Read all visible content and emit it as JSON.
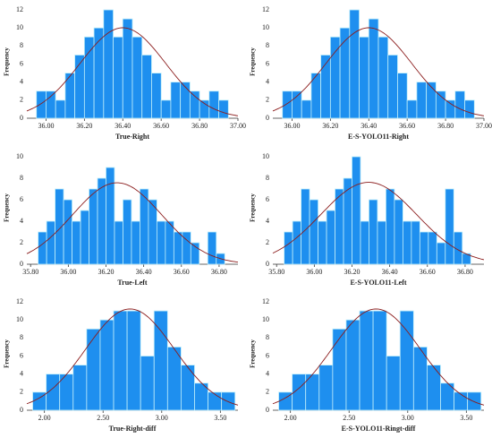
{
  "chart_data": [
    {
      "type": "histogram",
      "xlabel": "True-Right",
      "ylabel": "Frequency",
      "color": "#1e8fef",
      "bins": [
        35.95,
        36.0,
        36.05,
        36.1,
        36.15,
        36.2,
        36.25,
        36.3,
        36.35,
        36.4,
        36.45,
        36.5,
        36.55,
        36.6,
        36.65,
        36.7,
        36.75,
        36.8,
        36.85,
        36.9,
        36.95
      ],
      "values": [
        3,
        3,
        2,
        5,
        7,
        9,
        10,
        12,
        9,
        11,
        9,
        7,
        5,
        2,
        4,
        4,
        3,
        2,
        3,
        2
      ],
      "xlim": [
        35.9,
        37.0
      ],
      "ylim": [
        0,
        12.5
      ],
      "xticks": [
        {
          "value": 36.0,
          "label": "36.00"
        },
        {
          "value": 36.2,
          "label": "36.20"
        },
        {
          "value": 36.4,
          "label": "36.40"
        },
        {
          "value": 36.6,
          "label": "36.60"
        },
        {
          "value": 36.8,
          "label": "36.80"
        },
        {
          "value": 37.0,
          "label": "37.00"
        }
      ],
      "yticks": [
        0,
        2,
        4,
        6,
        8,
        10,
        12
      ]
    },
    {
      "type": "histogram",
      "xlabel": "E-S-YOLO11-Right",
      "ylabel": "Frequency",
      "color": "#1e8fef",
      "bins": [
        35.95,
        36.0,
        36.05,
        36.1,
        36.15,
        36.2,
        36.25,
        36.3,
        36.35,
        36.4,
        36.45,
        36.5,
        36.55,
        36.6,
        36.65,
        36.7,
        36.75,
        36.8,
        36.85,
        36.9,
        36.95
      ],
      "values": [
        3,
        3,
        2,
        5,
        7,
        9,
        10,
        12,
        9,
        11,
        9,
        7,
        5,
        2,
        4,
        4,
        3,
        2,
        3,
        2
      ],
      "xlim": [
        35.9,
        37.0
      ],
      "ylim": [
        0,
        12.5
      ],
      "xticks": [
        {
          "value": 36.0,
          "label": "36.00"
        },
        {
          "value": 36.2,
          "label": "36.20"
        },
        {
          "value": 36.4,
          "label": "36.40"
        },
        {
          "value": 36.6,
          "label": "36.60"
        },
        {
          "value": 36.8,
          "label": "36.80"
        },
        {
          "value": 37.0,
          "label": "37.00"
        }
      ],
      "yticks": [
        0,
        2,
        4,
        6,
        8,
        10,
        12
      ]
    },
    {
      "type": "histogram",
      "xlabel": "True-Left",
      "ylabel": "Frequency",
      "color": "#1e8fef",
      "bins": [
        35.84,
        35.885,
        35.93,
        35.975,
        36.02,
        36.065,
        36.11,
        36.155,
        36.2,
        36.245,
        36.29,
        36.335,
        36.38,
        36.425,
        36.47,
        36.515,
        36.56,
        36.605,
        36.65,
        36.695,
        36.74,
        36.785,
        36.83
      ],
      "values": [
        3,
        4,
        7,
        6,
        4,
        5,
        7,
        8,
        9,
        4,
        6,
        4,
        7,
        6,
        4,
        4,
        3,
        3,
        2,
        0,
        3,
        1
      ],
      "xlim": [
        35.78,
        36.9
      ],
      "ylim": [
        0,
        10.5
      ],
      "xticks": [
        {
          "value": 35.8,
          "label": "35.80"
        },
        {
          "value": 36.0,
          "label": "36.00"
        },
        {
          "value": 36.2,
          "label": "36.20"
        },
        {
          "value": 36.4,
          "label": "36.40"
        },
        {
          "value": 36.6,
          "label": "36.60"
        },
        {
          "value": 36.8,
          "label": "36.80"
        }
      ],
      "yticks": [
        0,
        2,
        4,
        6,
        8,
        10
      ]
    },
    {
      "type": "histogram",
      "xlabel": "E-S-YOLO11-Left",
      "ylabel": "Frequency",
      "color": "#1e8fef",
      "bins": [
        35.84,
        35.885,
        35.93,
        35.975,
        36.02,
        36.065,
        36.11,
        36.155,
        36.2,
        36.245,
        36.29,
        36.335,
        36.38,
        36.425,
        36.47,
        36.515,
        36.56,
        36.605,
        36.65,
        36.695,
        36.74,
        36.785,
        36.83
      ],
      "values": [
        3,
        4,
        7,
        6,
        4,
        5,
        7,
        8,
        10,
        4,
        6,
        4,
        7,
        6,
        4,
        4,
        3,
        3,
        2,
        7,
        3,
        1
      ],
      "xlim": [
        35.78,
        36.9
      ],
      "ylim": [
        0,
        10.5
      ],
      "xticks": [
        {
          "value": 35.8,
          "label": "35.80"
        },
        {
          "value": 36.0,
          "label": "36.00"
        },
        {
          "value": 36.2,
          "label": "36.20"
        },
        {
          "value": 36.4,
          "label": "36.40"
        },
        {
          "value": 36.6,
          "label": "36.60"
        },
        {
          "value": 36.8,
          "label": "36.80"
        }
      ],
      "yticks": [
        0,
        2,
        4,
        6,
        8,
        10
      ]
    },
    {
      "type": "histogram",
      "xlabel": "True-Right-diff",
      "ylabel": "Frequency",
      "color": "#1e8fef",
      "bins": [
        1.9,
        2.015,
        2.13,
        2.245,
        2.36,
        2.475,
        2.59,
        2.705,
        2.82,
        2.935,
        3.05,
        3.165,
        3.28,
        3.395,
        3.51,
        3.625
      ],
      "values": [
        2,
        4,
        4,
        5,
        9,
        10,
        11,
        11,
        6,
        11,
        7,
        5,
        3,
        2,
        2
      ],
      "xlim": [
        1.85,
        3.65
      ],
      "ylim": [
        0,
        12.5
      ],
      "xticks": [
        {
          "value": 2.0,
          "label": "2.00"
        },
        {
          "value": 2.5,
          "label": "2.50"
        },
        {
          "value": 3.0,
          "label": "3.00"
        },
        {
          "value": 3.5,
          "label": "3.50"
        }
      ],
      "yticks": [
        0,
        2,
        4,
        6,
        8,
        10,
        12
      ]
    },
    {
      "type": "histogram",
      "xlabel": "E-S-YOLO11-Ringt-diff",
      "ylabel": "Frequency",
      "color": "#1e8fef",
      "bins": [
        1.9,
        2.015,
        2.13,
        2.245,
        2.36,
        2.475,
        2.59,
        2.705,
        2.82,
        2.935,
        3.05,
        3.165,
        3.28,
        3.395,
        3.51,
        3.625
      ],
      "values": [
        2,
        4,
        4,
        5,
        9,
        10,
        11,
        11,
        6,
        11,
        7,
        5,
        3,
        2,
        2
      ],
      "xlim": [
        1.85,
        3.65
      ],
      "ylim": [
        0,
        12.5
      ],
      "xticks": [
        {
          "value": 2.0,
          "label": "2.00"
        },
        {
          "value": 2.5,
          "label": "2.50"
        },
        {
          "value": 3.0,
          "label": "3.00"
        },
        {
          "value": 3.5,
          "label": "3.50"
        }
      ],
      "yticks": [
        0,
        2,
        4,
        6,
        8,
        10,
        12
      ]
    }
  ]
}
